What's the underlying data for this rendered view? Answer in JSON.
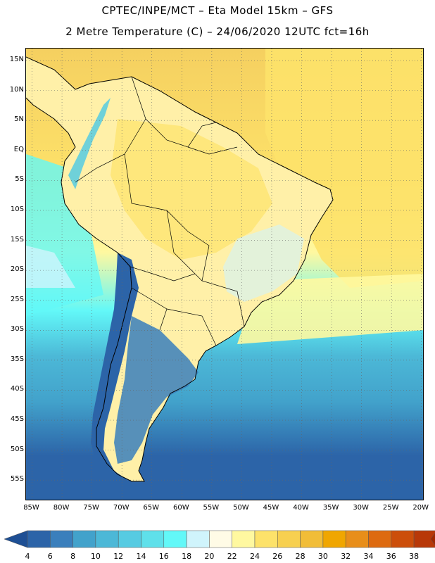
{
  "title_line1": "CPTEC/INPE/MCT –  Eta Model 15km – GFS",
  "title_line2": "2 Metre Temperature (C) – 24/06/2020 12UTC fct=16h",
  "map": {
    "lon_range": [
      -86,
      -19.5
    ],
    "lat_range": [
      17,
      -58.5
    ],
    "lat_ticks": [
      "15N",
      "10N",
      "5N",
      "EQ",
      "5S",
      "10S",
      "15S",
      "20S",
      "25S",
      "30S",
      "35S",
      "40S",
      "45S",
      "50S",
      "55S"
    ],
    "lat_values": [
      15,
      10,
      5,
      0,
      -5,
      -10,
      -15,
      -20,
      -25,
      -30,
      -35,
      -40,
      -45,
      -50,
      -55
    ],
    "lon_ticks": [
      "85W",
      "80W",
      "75W",
      "70W",
      "65W",
      "60W",
      "55W",
      "50W",
      "45W",
      "40W",
      "35W",
      "30W",
      "25W",
      "20W"
    ],
    "lon_values": [
      -85,
      -80,
      -75,
      -70,
      -65,
      -60,
      -55,
      -50,
      -45,
      -40,
      -35,
      -30,
      -25,
      -20
    ],
    "grid": true
  },
  "colorbar": {
    "levels": [
      "4",
      "6",
      "8",
      "10",
      "12",
      "14",
      "16",
      "18",
      "20",
      "22",
      "24",
      "26",
      "28",
      "30",
      "32",
      "34",
      "36",
      "38"
    ],
    "colors": [
      "#2c64a8",
      "#3a7fbc",
      "#42a2cb",
      "#4cb8d7",
      "#56cbe2",
      "#5fe0ea",
      "#62f8f8",
      "#d0f4fc",
      "#fffbe6",
      "#fff8a0",
      "#fde26a",
      "#f7d050",
      "#f1bd38",
      "#f0a600",
      "#e88e1a",
      "#dd6a10",
      "#cc4e0a",
      "#b83808"
    ],
    "under_color": "#1e4f94",
    "over_color": "#a02800"
  },
  "field_colors": {
    "ocean_north": "#f5d060",
    "ocean_tropical": "#fde26a",
    "ocean_subtropic": "#fff8a0",
    "ocean_cool": "#62f8f8",
    "ocean_cold": "#4cb8d7",
    "ocean_colder": "#42a2cb",
    "ocean_south": "#2c64a8",
    "land_warm": "#fff0a8",
    "land_hot": "#fde26a",
    "andes": "#2c64a8",
    "patagonia": "#3a7fbc",
    "coast": "#000000"
  }
}
